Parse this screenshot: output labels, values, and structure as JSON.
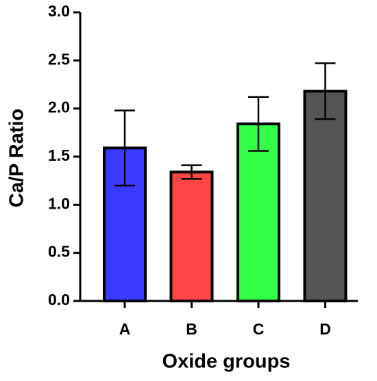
{
  "chart_data": {
    "type": "bar",
    "categories": [
      "A",
      "B",
      "C",
      "D"
    ],
    "values": [
      1.59,
      1.34,
      1.84,
      2.18
    ],
    "errors": [
      0.39,
      0.07,
      0.28,
      0.29
    ],
    "colors": [
      "#3b3bff",
      "#ff4545",
      "#33ff46",
      "#555555"
    ],
    "x_label": "Oxide groups",
    "y_label": "Ca/P Ratio",
    "ylim": [
      0,
      3
    ],
    "yticks": [
      {
        "value": 0,
        "label": "0.0"
      },
      0.5,
      {
        "value": 1,
        "label": "1.0"
      },
      1.5,
      {
        "value": 2,
        "label": "2.0"
      },
      2.5,
      {
        "value": 3,
        "label": "3.0"
      }
    ]
  }
}
